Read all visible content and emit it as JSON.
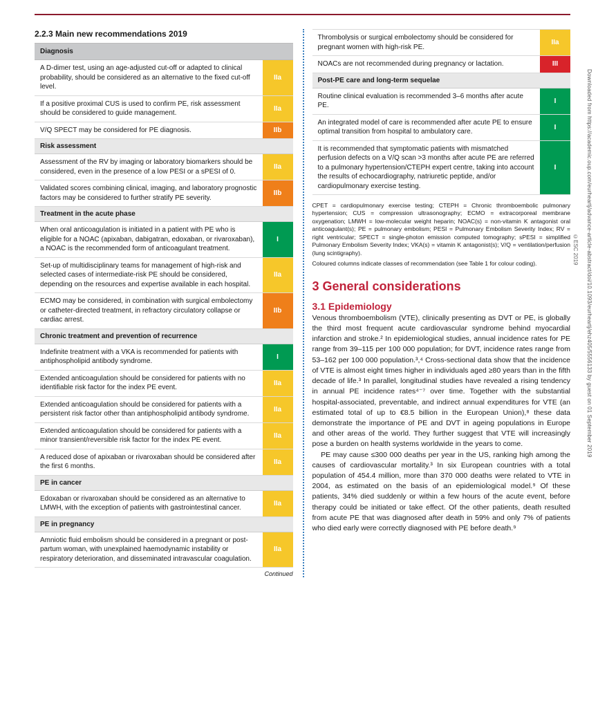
{
  "top_rule_color": "#8b1a2c",
  "section_heading": "2.2.3 Main new recommendations 2019",
  "side_citation": "Downloaded from https://academic.oup.com/eurheartj/advance-article-abstract/doi/10.1093/eurheartj/ehz405/5556133 by guest on 01 September 2019",
  "esc_badge": "©ESC 2019",
  "class_colors": {
    "I": "#009a52",
    "IIa": "#f6c72a",
    "IIb": "#ef7f1a",
    "III": "#d8232a"
  },
  "left_table": {
    "header": "Diagnosis",
    "groups": [
      {
        "header": "Diagnosis",
        "rows": [
          {
            "text": "A D-dimer test, using an age-adjusted cut-off or adapted to clinical probability, should be considered as an alternative to the fixed cut-off level.",
            "class": "IIa"
          },
          {
            "text": "If a positive proximal CUS is used to confirm PE, risk assessment should be considered to guide management.",
            "class": "IIa"
          },
          {
            "text": "V/Q SPECT may be considered for PE diagnosis.",
            "class": "IIb"
          }
        ]
      },
      {
        "header": "Risk assessment",
        "rows": [
          {
            "text": "Assessment of the RV by imaging or laboratory biomarkers should be considered, even in the presence of a low PESI or a sPESI of 0.",
            "class": "IIa"
          },
          {
            "text": "Validated scores combining clinical, imaging, and laboratory prognostic factors may be considered to further stratify PE severity.",
            "class": "IIb"
          }
        ]
      },
      {
        "header": "Treatment in the acute phase",
        "rows": [
          {
            "text": "When oral anticoagulation is initiated in a patient with PE who is eligible for a NOAC (apixaban, dabigatran, edoxaban, or rivaroxaban), a NOAC is the recommended form of anticoagulant treatment.",
            "class": "I"
          },
          {
            "text": "Set-up of multidisciplinary teams for management of high-risk and selected cases of intermediate-risk PE should be considered, depending on the resources and expertise available in each hospital.",
            "class": "IIa"
          },
          {
            "text": "ECMO may be considered, in combination with surgical embolectomy or catheter-directed treatment, in refractory circulatory collapse or cardiac arrest.",
            "class": "IIb"
          }
        ]
      },
      {
        "header": "Chronic treatment and prevention of recurrence",
        "rows": [
          {
            "text": "Indefinite treatment with a VKA is recommended for patients with antiphospholipid antibody syndrome.",
            "class": "I"
          },
          {
            "text": "Extended anticoagulation should be considered for patients with no identifiable risk factor for the index PE event.",
            "class": "IIa"
          },
          {
            "text": "Extended anticoagulation should be considered for patients with a persistent risk factor other than antiphospholipid antibody syndrome.",
            "class": "IIa"
          },
          {
            "text": "Extended anticoagulation should be considered for patients with a minor transient/reversible risk factor for the index PE event.",
            "class": "IIa"
          },
          {
            "text": "A reduced dose of apixaban or rivaroxaban should be considered after the first 6 months.",
            "class": "IIa"
          }
        ]
      },
      {
        "header": "PE in cancer",
        "rows": [
          {
            "text": "Edoxaban or rivaroxaban should be considered as an alternative to LMWH, with the exception of patients with gastrointestinal cancer.",
            "class": "IIa"
          }
        ]
      },
      {
        "header": "PE in pregnancy",
        "rows": [
          {
            "text": "Amniotic fluid embolism should be considered in a pregnant or post-partum woman, with unexplained haemodynamic instability or respiratory deterioration, and disseminated intravascular coagulation.",
            "class": "IIa"
          }
        ]
      }
    ],
    "continued": "Continued"
  },
  "right_table": {
    "pre_rows": [
      {
        "text": "Thrombolysis or surgical embolectomy should be considered for pregnant women with high-risk PE.",
        "class": "IIa"
      },
      {
        "text": "NOACs are not recommended during pregnancy or lactation.",
        "class": "III"
      }
    ],
    "groups": [
      {
        "header": "Post-PE care and long-term sequelae",
        "rows": [
          {
            "text": "Routine clinical evaluation is recommended 3–6 months after acute PE.",
            "class": "I"
          },
          {
            "text": "An integrated model of care is recommended after acute PE to ensure optimal transition from hospital to ambulatory care.",
            "class": "I"
          },
          {
            "text": "It is recommended that symptomatic patients with mismatched perfusion defects on a V/Q scan >3 months after acute PE are referred to a pulmonary hypertension/CTEPH expert centre, taking into account the results of echocardiography, natriuretic peptide, and/or cardiopulmonary exercise testing.",
            "class": "I"
          }
        ]
      }
    ]
  },
  "abbreviations": "CPET = cardiopulmonary exercise testing; CTEPH = Chronic thromboembolic pulmonary hypertension; CUS = compression ultrasonography; ECMO = extracorporeal membrane oxygenation; LMWH = low-molecular weight heparin; NOAC(s) = non-vitamin K antagonist oral anticoagulant(s); PE = pulmonary embolism; PESI = Pulmonary Embolism Severity Index; RV = right ventricular; SPECT = single-photon emission computed tomography; sPESI = simplified Pulmonary Embolism Severity Index; VKA(s) = vitamin K antagonist(s); V/Q = ventilation/perfusion (lung scintigraphy).",
  "coding_note": "Coloured columns indicate classes of recommendation (see Table 1 for colour coding).",
  "h2": "3 General considerations",
  "h3": "3.1 Epidemiology",
  "para1": "Venous thromboembolism (VTE), clinically presenting as DVT or PE, is globally the third most frequent acute cardiovascular syndrome behind myocardial infarction and stroke.² In epidemiological studies, annual incidence rates for PE range from 39–115 per 100 000 population; for DVT, incidence rates range from 53–162 per 100 000 population.³,⁴ Cross-sectional data show that the incidence of VTE is almost eight times higher in individuals aged ≥80 years than in the fifth decade of life.³ In parallel, longitudinal studies have revealed a rising tendency in annual PE incidence rates⁴⁻⁷ over time. Together with the substantial hospital-associated, preventable, and indirect annual expenditures for VTE (an estimated total of up to €8.5 billion in the European Union),⁸ these data demonstrate the importance of PE and DVT in ageing populations in Europe and other areas of the world. They further suggest that VTE will increasingly pose a burden on health systems worldwide in the years to come.",
  "para2": "PE may cause ≤300 000 deaths per year in the US, ranking high among the causes of cardiovascular mortality.³ In six European countries with a total population of 454.4 million, more than 370 000 deaths were related to VTE in 2004, as estimated on the basis of an epidemiological model.⁹ Of these patients, 34% died suddenly or within a few hours of the acute event, before therapy could be initiated or take effect. Of the other patients, death resulted from acute PE that was diagnosed after death in 59% and only 7% of patients who died early were correctly diagnosed with PE before death.⁹"
}
